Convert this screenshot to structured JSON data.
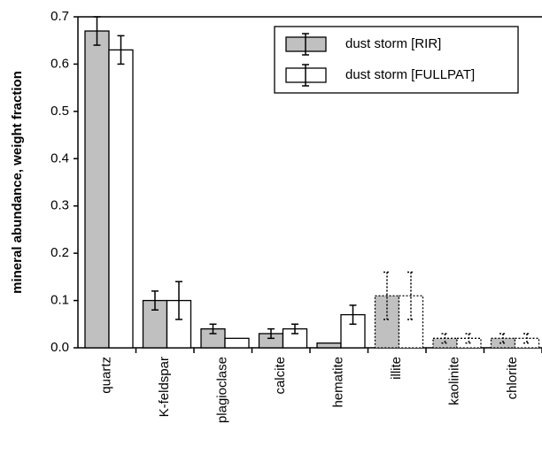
{
  "chart_data": {
    "type": "bar",
    "ylabel": "mineral abundance, weight fraction",
    "categories": [
      "quartz",
      "K-feldspar",
      "plagioclase",
      "calcite",
      "hematite",
      "illite",
      "kaolinite",
      "chlorite"
    ],
    "dotted": [
      false,
      false,
      false,
      false,
      false,
      true,
      true,
      true
    ],
    "series": [
      {
        "name": "dust storm [RIR]",
        "color": "#c0c0c0",
        "values": [
          0.67,
          0.1,
          0.04,
          0.03,
          0.01,
          0.11,
          0.02,
          0.02
        ],
        "errors": [
          0.03,
          0.02,
          0.01,
          0.01,
          null,
          0.05,
          0.01,
          0.01
        ]
      },
      {
        "name": "dust storm [FULLPAT]",
        "color": "#ffffff",
        "values": [
          0.63,
          0.1,
          0.02,
          0.04,
          0.07,
          0.11,
          0.02,
          0.02
        ],
        "errors": [
          0.03,
          0.04,
          null,
          0.01,
          0.02,
          0.05,
          0.01,
          0.01
        ]
      }
    ],
    "ylim": [
      0,
      0.7
    ],
    "yticks": [
      {
        "value": 0,
        "label": "0.0"
      },
      0.1,
      0.2,
      0.3,
      0.4,
      0.5,
      0.6,
      0.7
    ],
    "legend": "top-right"
  }
}
